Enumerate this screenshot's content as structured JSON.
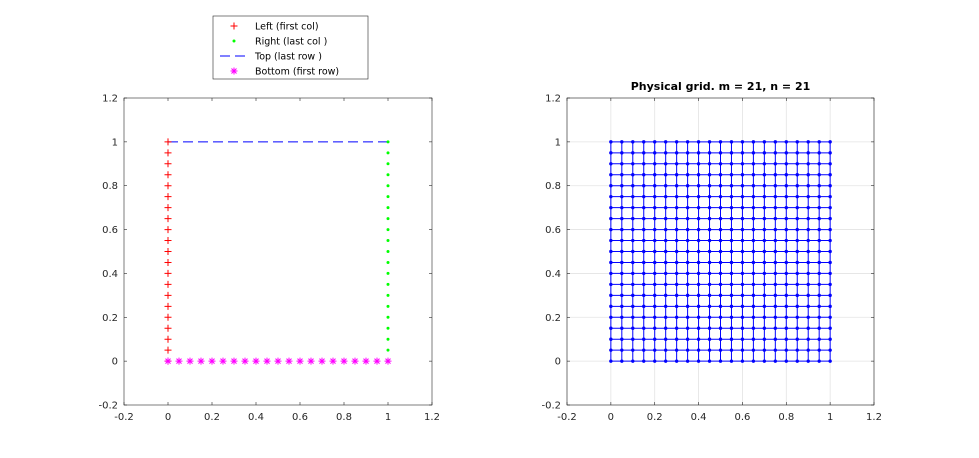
{
  "chart_data": [
    {
      "type": "scatter",
      "title": "",
      "xlabel": "",
      "ylabel": "",
      "xlim": [
        -0.2,
        1.2
      ],
      "ylim": [
        -0.2,
        1.2
      ],
      "xticks": [
        "-0.2",
        "0",
        "0.2",
        "0.4",
        "0.6",
        "0.8",
        "1",
        "1.2"
      ],
      "yticks": [
        "-0.2",
        "0",
        "0.2",
        "0.4",
        "0.6",
        "0.8",
        "1",
        "1.2"
      ],
      "grid": false,
      "legend_position": "outside-top",
      "series": [
        {
          "name": "Left   (first col)",
          "marker": "+",
          "line": "none",
          "color": "#ff0000",
          "x": [
            0,
            0,
            0,
            0,
            0,
            0,
            0,
            0,
            0,
            0,
            0,
            0,
            0,
            0,
            0,
            0,
            0,
            0,
            0,
            0,
            0
          ],
          "y": [
            0,
            0.05,
            0.1,
            0.15,
            0.2,
            0.25,
            0.3,
            0.35,
            0.4,
            0.45,
            0.5,
            0.55,
            0.6,
            0.65,
            0.7,
            0.75,
            0.8,
            0.85,
            0.9,
            0.95,
            1
          ]
        },
        {
          "name": "Right   (last col )",
          "marker": ".",
          "line": "none",
          "color": "#00ff00",
          "x": [
            1,
            1,
            1,
            1,
            1,
            1,
            1,
            1,
            1,
            1,
            1,
            1,
            1,
            1,
            1,
            1,
            1,
            1,
            1,
            1,
            1
          ],
          "y": [
            0,
            0.05,
            0.1,
            0.15,
            0.2,
            0.25,
            0.3,
            0.35,
            0.4,
            0.45,
            0.5,
            0.55,
            0.6,
            0.65,
            0.7,
            0.75,
            0.8,
            0.85,
            0.9,
            0.95,
            1
          ]
        },
        {
          "name": "Top    (last row )",
          "marker": "none",
          "line": "dashed",
          "color": "#0000ff",
          "x": [
            0,
            0.05,
            0.1,
            0.15,
            0.2,
            0.25,
            0.3,
            0.35,
            0.4,
            0.45,
            0.5,
            0.55,
            0.6,
            0.65,
            0.7,
            0.75,
            0.8,
            0.85,
            0.9,
            0.95,
            1
          ],
          "y": [
            1,
            1,
            1,
            1,
            1,
            1,
            1,
            1,
            1,
            1,
            1,
            1,
            1,
            1,
            1,
            1,
            1,
            1,
            1,
            1,
            1
          ]
        },
        {
          "name": "Bottom (first row)",
          "marker": "*",
          "line": "none",
          "color": "#ff00ff",
          "x": [
            0,
            0.05,
            0.1,
            0.15,
            0.2,
            0.25,
            0.3,
            0.35,
            0.4,
            0.45,
            0.5,
            0.55,
            0.6,
            0.65,
            0.7,
            0.75,
            0.8,
            0.85,
            0.9,
            0.95,
            1
          ],
          "y": [
            0,
            0,
            0,
            0,
            0,
            0,
            0,
            0,
            0,
            0,
            0,
            0,
            0,
            0,
            0,
            0,
            0,
            0,
            0,
            0,
            0
          ]
        }
      ]
    },
    {
      "type": "line",
      "title": "Physical grid. m = 21, n = 21",
      "xlabel": "",
      "ylabel": "",
      "xlim": [
        -0.2,
        1.2
      ],
      "ylim": [
        -0.2,
        1.2
      ],
      "xticks": [
        "-0.2",
        "0",
        "0.2",
        "0.4",
        "0.6",
        "0.8",
        "1",
        "1.2"
      ],
      "yticks": [
        "-0.2",
        "0",
        "0.2",
        "0.4",
        "0.6",
        "0.8",
        "1",
        "1.2"
      ],
      "grid": true,
      "m": 21,
      "n": 21,
      "grid_x": [
        0,
        0.05,
        0.1,
        0.15,
        0.2,
        0.25,
        0.3,
        0.35,
        0.4,
        0.45,
        0.5,
        0.55,
        0.6,
        0.65,
        0.7,
        0.75,
        0.8,
        0.85,
        0.9,
        0.95,
        1
      ],
      "grid_y": [
        0,
        0.05,
        0.1,
        0.15,
        0.2,
        0.25,
        0.3,
        0.35,
        0.4,
        0.45,
        0.5,
        0.55,
        0.6,
        0.65,
        0.7,
        0.75,
        0.8,
        0.85,
        0.9,
        0.95,
        1
      ],
      "marker": ".",
      "color": "#0000ff"
    }
  ]
}
